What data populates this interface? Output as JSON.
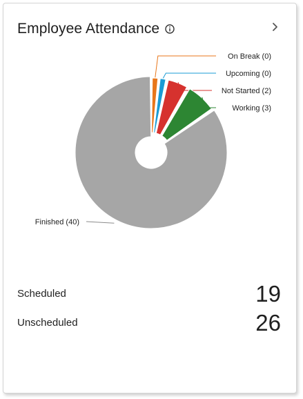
{
  "widget": {
    "title": "Employee Attendance",
    "info_icon": "info-icon",
    "expand_icon": "chevron-right-icon"
  },
  "chart_data": {
    "type": "pie",
    "donut": true,
    "categories": [
      "On Break",
      "Upcoming",
      "Not Started",
      "Working",
      "Finished"
    ],
    "values": [
      0,
      0,
      2,
      3,
      40
    ],
    "labels": [
      "On Break (0)",
      "Upcoming (0)",
      "Not Started (2)",
      "Working (3)",
      "Finished (40)"
    ],
    "colors": [
      "#e8761a",
      "#1a9bd4",
      "#d6322e",
      "#2d8633",
      "#a6a6a6"
    ],
    "title": ""
  },
  "stats": [
    {
      "label": "Scheduled",
      "value": "19"
    },
    {
      "label": "Unscheduled",
      "value": "26"
    }
  ]
}
